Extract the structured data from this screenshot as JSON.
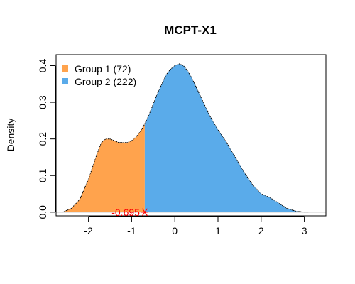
{
  "chart_data": {
    "type": "area",
    "title": "MCPT-X1",
    "xlabel": "",
    "ylabel": "Density",
    "xlim": [
      -2.75,
      3.5
    ],
    "ylim": [
      -0.01,
      0.43
    ],
    "x_ticks": [
      -2,
      -1,
      0,
      1,
      2,
      3
    ],
    "y_ticks": [
      0.0,
      0.1,
      0.2,
      0.3,
      0.4
    ],
    "legend_position": "top-left",
    "grid": false,
    "cutoff": {
      "value": -0.695,
      "label": "-0.695",
      "color": "#ff0000"
    },
    "series": [
      {
        "name": "Group 1 (72)",
        "color": "#ffa34d",
        "range": [
          -2.6,
          -0.695
        ]
      },
      {
        "name": "Group 2 (222)",
        "color": "#5aabea",
        "range": [
          -0.695,
          3.1
        ]
      }
    ],
    "density": {
      "x": [
        -2.6,
        -2.4,
        -2.2,
        -2.0,
        -1.8,
        -1.7,
        -1.6,
        -1.5,
        -1.4,
        -1.3,
        -1.2,
        -1.1,
        -1.0,
        -0.9,
        -0.8,
        -0.7,
        -0.6,
        -0.5,
        -0.4,
        -0.3,
        -0.2,
        -0.1,
        0.0,
        0.1,
        0.2,
        0.3,
        0.4,
        0.5,
        0.6,
        0.7,
        0.8,
        0.9,
        1.0,
        1.2,
        1.4,
        1.6,
        1.8,
        2.0,
        2.2,
        2.4,
        2.6,
        2.8,
        3.0,
        3.1
      ],
      "y": [
        0.0,
        0.01,
        0.035,
        0.09,
        0.16,
        0.19,
        0.2,
        0.2,
        0.195,
        0.19,
        0.19,
        0.19,
        0.195,
        0.205,
        0.22,
        0.24,
        0.265,
        0.295,
        0.325,
        0.35,
        0.375,
        0.39,
        0.4,
        0.405,
        0.4,
        0.385,
        0.365,
        0.34,
        0.315,
        0.29,
        0.265,
        0.245,
        0.225,
        0.19,
        0.15,
        0.11,
        0.075,
        0.05,
        0.04,
        0.025,
        0.01,
        0.003,
        0.0,
        0.0
      ]
    }
  }
}
